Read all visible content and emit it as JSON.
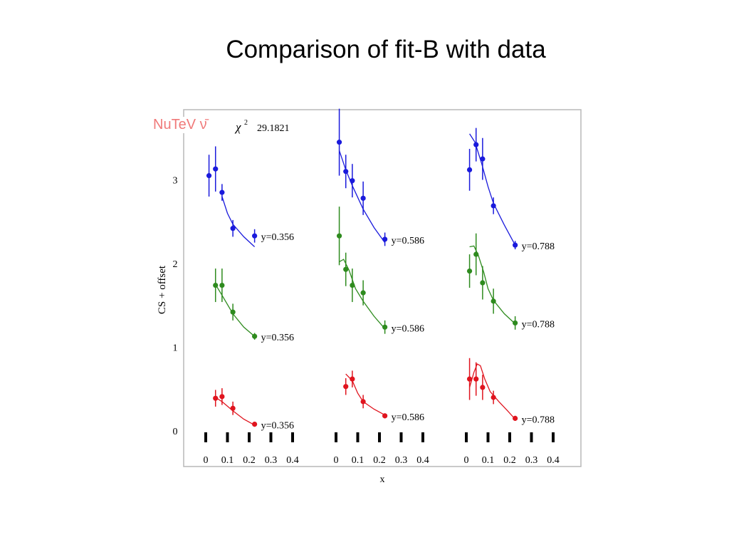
{
  "slide": {
    "title": "Comparison of fit-B with data",
    "label": {
      "text": "NuTeV ν̄",
      "color": "#f07a7a"
    }
  },
  "chart_data": {
    "type": "scatter",
    "chi2_symbol": "χ",
    "chi2_sup": "2",
    "chi2_value": "29.1821",
    "ylabel": "CS + offset",
    "xlabel": "x",
    "ylim": [
      0,
      3.5
    ],
    "yticks": [
      0,
      1,
      2,
      3
    ],
    "xlim": [
      0,
      0.4
    ],
    "xticks": [
      "0",
      "0.1",
      "0.2",
      "0.3",
      "0.4"
    ],
    "grid": false,
    "series_colors": {
      "offset2": "#1a1adc",
      "offset1": "#2e8b1e",
      "offset0": "#e0141e"
    },
    "panels": [
      {
        "y_label": "y=0.356",
        "groups": [
          {
            "offset": 2,
            "color": "#1a1adc",
            "points": [
              [
                0.015,
                3.05,
                0.25
              ],
              [
                0.045,
                3.13,
                0.27
              ],
              [
                0.075,
                2.85,
                0.1
              ],
              [
                0.125,
                2.42,
                0.1
              ],
              [
                0.225,
                2.33,
                0.08
              ]
            ],
            "curve": [
              [
                0.075,
                2.8
              ],
              [
                0.1,
                2.6
              ],
              [
                0.125,
                2.47
              ],
              [
                0.175,
                2.32
              ],
              [
                0.225,
                2.2
              ]
            ]
          },
          {
            "offset": 1,
            "color": "#2e8b1e",
            "points": [
              [
                0.045,
                1.74,
                0.2
              ],
              [
                0.075,
                1.74,
                0.2
              ],
              [
                0.125,
                1.42,
                0.1
              ],
              [
                0.225,
                1.13,
                0.04
              ]
            ],
            "curve": [
              [
                0.045,
                1.75
              ],
              [
                0.075,
                1.62
              ],
              [
                0.125,
                1.4
              ],
              [
                0.175,
                1.24
              ],
              [
                0.225,
                1.13
              ]
            ]
          },
          {
            "offset": 0,
            "color": "#e0141e",
            "points": [
              [
                0.045,
                0.39,
                0.1
              ],
              [
                0.075,
                0.41,
                0.1
              ],
              [
                0.125,
                0.27,
                0.08
              ],
              [
                0.225,
                0.08,
                0.03
              ]
            ],
            "curve": [
              [
                0.045,
                0.4
              ],
              [
                0.075,
                0.35
              ],
              [
                0.125,
                0.24
              ],
              [
                0.175,
                0.14
              ],
              [
                0.225,
                0.07
              ]
            ]
          }
        ]
      },
      {
        "y_label": "y=0.586",
        "groups": [
          {
            "offset": 2,
            "color": "#1a1adc",
            "points": [
              [
                0.015,
                3.45,
                0.4
              ],
              [
                0.045,
                3.1,
                0.2
              ],
              [
                0.075,
                2.99,
                0.2
              ],
              [
                0.125,
                2.78,
                0.2
              ],
              [
                0.225,
                2.29,
                0.08
              ]
            ],
            "curve": [
              [
                0.015,
                3.35
              ],
              [
                0.045,
                3.12
              ],
              [
                0.075,
                2.93
              ],
              [
                0.125,
                2.65
              ],
              [
                0.175,
                2.43
              ],
              [
                0.225,
                2.25
              ]
            ]
          },
          {
            "offset": 1,
            "color": "#2e8b1e",
            "points": [
              [
                0.015,
                2.33,
                0.35
              ],
              [
                0.045,
                1.93,
                0.2
              ],
              [
                0.075,
                1.74,
                0.2
              ],
              [
                0.125,
                1.65,
                0.15
              ],
              [
                0.225,
                1.24,
                0.08
              ]
            ],
            "curve": [
              [
                0.015,
                2.02
              ],
              [
                0.035,
                2.05
              ],
              [
                0.06,
                1.92
              ],
              [
                0.09,
                1.7
              ],
              [
                0.125,
                1.55
              ],
              [
                0.175,
                1.37
              ],
              [
                0.225,
                1.22
              ]
            ]
          },
          {
            "offset": 0,
            "color": "#e0141e",
            "points": [
              [
                0.045,
                0.53,
                0.1
              ],
              [
                0.075,
                0.62,
                0.1
              ],
              [
                0.125,
                0.35,
                0.08
              ],
              [
                0.225,
                0.18,
                0.03
              ]
            ],
            "curve": [
              [
                0.045,
                0.68
              ],
              [
                0.075,
                0.6
              ],
              [
                0.1,
                0.45
              ],
              [
                0.125,
                0.35
              ],
              [
                0.175,
                0.26
              ],
              [
                0.225,
                0.19
              ]
            ]
          }
        ]
      },
      {
        "y_label": "y=0.788",
        "groups": [
          {
            "offset": 2,
            "color": "#1a1adc",
            "points": [
              [
                0.015,
                3.12,
                0.25
              ],
              [
                0.045,
                3.42,
                0.2
              ],
              [
                0.075,
                3.25,
                0.25
              ],
              [
                0.125,
                2.69,
                0.1
              ],
              [
                0.225,
                2.22,
                0.05
              ]
            ],
            "curve": [
              [
                0.015,
                3.55
              ],
              [
                0.04,
                3.45
              ],
              [
                0.07,
                3.2
              ],
              [
                0.1,
                2.92
              ],
              [
                0.125,
                2.72
              ],
              [
                0.175,
                2.46
              ],
              [
                0.225,
                2.22
              ]
            ]
          },
          {
            "offset": 1,
            "color": "#2e8b1e",
            "points": [
              [
                0.015,
                1.91,
                0.2
              ],
              [
                0.045,
                2.11,
                0.25
              ],
              [
                0.075,
                1.77,
                0.2
              ],
              [
                0.125,
                1.55,
                0.15
              ],
              [
                0.225,
                1.29,
                0.08
              ]
            ],
            "curve": [
              [
                0.015,
                2.2
              ],
              [
                0.035,
                2.21
              ],
              [
                0.055,
                2.1
              ],
              [
                0.08,
                1.9
              ],
              [
                0.1,
                1.7
              ],
              [
                0.125,
                1.56
              ],
              [
                0.175,
                1.4
              ],
              [
                0.225,
                1.28
              ]
            ]
          },
          {
            "offset": 0,
            "color": "#e0141e",
            "points": [
              [
                0.015,
                0.62,
                0.25
              ],
              [
                0.045,
                0.62,
                0.2
              ],
              [
                0.075,
                0.52,
                0.15
              ],
              [
                0.125,
                0.4,
                0.08
              ],
              [
                0.225,
                0.15,
                0.03
              ]
            ],
            "curve": [
              [
                0.015,
                0.52
              ],
              [
                0.035,
                0.7
              ],
              [
                0.05,
                0.8
              ],
              [
                0.065,
                0.78
              ],
              [
                0.085,
                0.62
              ],
              [
                0.11,
                0.47
              ],
              [
                0.15,
                0.35
              ],
              [
                0.19,
                0.24
              ],
              [
                0.225,
                0.14
              ]
            ]
          }
        ]
      }
    ]
  }
}
